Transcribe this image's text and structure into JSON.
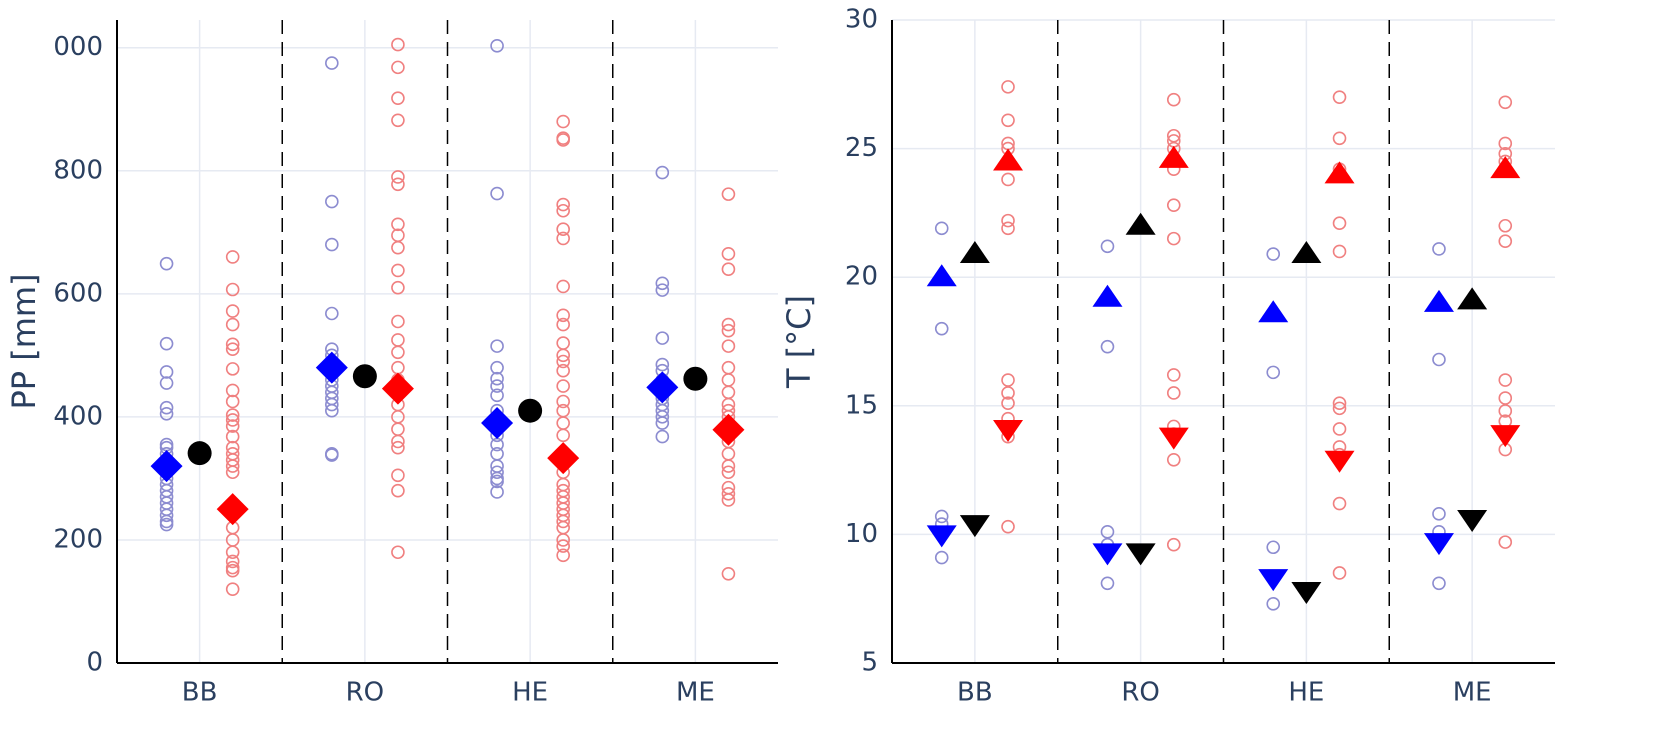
{
  "chart_data": [
    {
      "type": "scatter",
      "y_label": "PP [mm]",
      "categories": [
        "BB",
        "RO",
        "HE",
        "ME"
      ],
      "ylim": [
        0,
        1045
      ],
      "yticks": [
        0,
        200,
        400,
        600,
        800,
        {
          "value": 1000,
          "label": "000"
        }
      ],
      "grid": true,
      "series": [
        {
          "color": "#8c8cd0",
          "marker": "circle-open",
          "values": [
            [
              649,
              519,
              473,
              455,
              415,
              405,
              355,
              350,
              340,
              330,
              320,
              310,
              300,
              290,
              280,
              270,
              260,
              250,
              240,
              230,
              225
            ],
            [
              975,
              750,
              680,
              568,
              510,
              500,
              490,
              480,
              470,
              460,
              450,
              440,
              430,
              420,
              410,
              340,
              338
            ],
            [
              1003,
              763,
              515,
              480,
              462,
              450,
              435,
              410,
              390,
              370,
              355,
              340,
              320,
              310,
              300,
              295,
              278
            ],
            [
              797,
              617,
              606,
              528,
              485,
              475,
              460,
              445,
              430,
              420,
              410,
              400,
              390,
              368
            ]
          ]
        },
        {
          "color": "#0000ff",
          "marker": "diamond",
          "values": [
            320,
            480,
            390,
            448
          ]
        },
        {
          "color": "#000000",
          "marker": "circle",
          "values": [
            341,
            466,
            410,
            462
          ]
        },
        {
          "color": "#f08080",
          "marker": "circle-open",
          "values": [
            [
              660,
              607,
              572,
              550,
              518,
              510,
              478,
              443,
              425,
              403,
              395,
              385,
              368,
              350,
              340,
              330,
              320,
              310,
              260,
              240,
              220,
              200,
              180,
              165,
              155,
              150,
              120
            ],
            [
              1005,
              968,
              918,
              882,
              790,
              778,
              713,
              695,
              675,
              638,
              610,
              555,
              525,
              505,
              480,
              460,
              440,
              420,
              400,
              380,
              360,
              350,
              305,
              280,
              180
            ],
            [
              880,
              853,
              850,
              745,
              735,
              705,
              690,
              612,
              565,
              550,
              520,
              500,
              490,
              475,
              450,
              425,
              410,
              390,
              370,
              340,
              310,
              290,
              280,
              270,
              260,
              250,
              240,
              230,
              220,
              200,
              190,
              175
            ],
            [
              762,
              665,
              640,
              550,
              540,
              515,
              480,
              460,
              440,
              420,
              410,
              400,
              390,
              380,
              360,
              340,
              320,
              310,
              285,
              275,
              265,
              145
            ]
          ]
        },
        {
          "color": "#ff0000",
          "marker": "diamond",
          "values": [
            250,
            446,
            333,
            379
          ]
        }
      ]
    },
    {
      "type": "scatter",
      "y_label": "T [°C]",
      "categories": [
        "BB",
        "RO",
        "HE",
        "ME"
      ],
      "ylim": [
        5,
        30
      ],
      "yticks": [
        5,
        10,
        15,
        20,
        25,
        30
      ],
      "grid": true,
      "series": [
        {
          "color": "#8c8cd0",
          "marker": "circle-open",
          "values": [
            [
              21.9,
              18.0,
              10.7,
              10.4,
              9.1
            ],
            [
              21.2,
              19.2,
              17.3,
              10.1,
              9.6,
              8.1
            ],
            [
              20.9,
              16.3,
              9.5,
              7.3
            ],
            [
              21.1,
              16.8,
              10.8,
              10.1,
              8.1
            ]
          ]
        },
        {
          "color": "#0000ff",
          "marker": "triangle-up",
          "values": [
            20.0,
            19.2,
            18.6,
            19.0
          ]
        },
        {
          "color": "#0000ff",
          "marker": "triangle-down",
          "values": [
            10.0,
            9.3,
            8.3,
            9.7
          ]
        },
        {
          "color": "#000000",
          "marker": "triangle-up",
          "values": [
            20.9,
            22.0,
            20.9,
            19.1
          ]
        },
        {
          "color": "#000000",
          "marker": "triangle-down",
          "values": [
            10.4,
            9.3,
            7.8,
            10.6
          ]
        },
        {
          "color": "#f08080",
          "marker": "circle-open",
          "values": [
            [
              27.4,
              26.1,
              25.2,
              25.0,
              23.8,
              22.2,
              21.9,
              16.0,
              15.5,
              15.1,
              14.5,
              13.8,
              10.3
            ],
            [
              26.9,
              25.5,
              25.3,
              25.0,
              24.2,
              22.8,
              21.5,
              16.2,
              15.5,
              14.2,
              13.9,
              12.9,
              9.6
            ],
            [
              27.0,
              25.4,
              24.2,
              24.0,
              22.1,
              21.0,
              15.1,
              14.9,
              14.1,
              13.4,
              13.1,
              11.2,
              8.5
            ],
            [
              26.8,
              25.2,
              24.8,
              24.5,
              24.2,
              22.0,
              21.4,
              16.0,
              15.3,
              14.8,
              14.4,
              13.3,
              9.7
            ]
          ]
        },
        {
          "color": "#ff0000",
          "marker": "triangle-up",
          "values": [
            24.5,
            24.6,
            24.0,
            24.2
          ]
        },
        {
          "color": "#ff0000",
          "marker": "triangle-down",
          "values": [
            14.1,
            13.8,
            12.9,
            13.9
          ]
        }
      ]
    }
  ]
}
